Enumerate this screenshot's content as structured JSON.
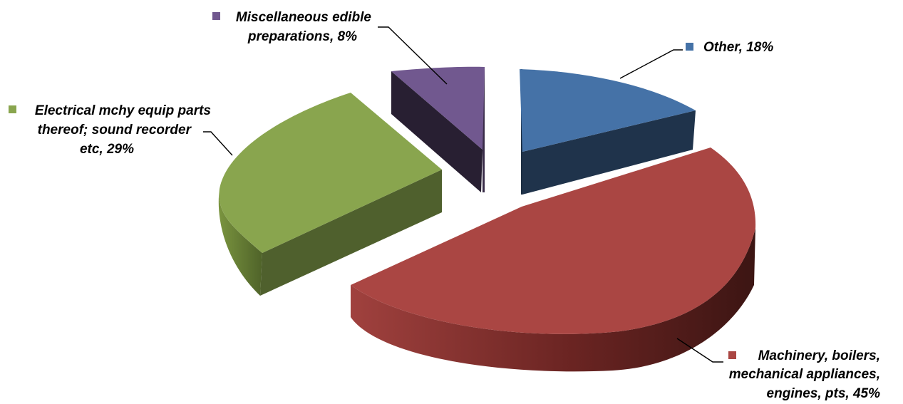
{
  "chart_data": {
    "type": "pie",
    "style": "3d-exploded",
    "title": "",
    "slices": [
      {
        "name": "Other",
        "value": 18,
        "label_lines": [
          "Other, 18%"
        ],
        "color": "#4572A7"
      },
      {
        "name": "Machinery, boilers, mechanical appliances, engines, pts",
        "value": 45,
        "label_lines": [
          "Machinery, boilers,",
          "mechanical appliances,",
          "engines, pts, 45%"
        ],
        "color": "#AA4643"
      },
      {
        "name": "Electrical mchy equip parts thereof; sound recorder etc",
        "value": 29,
        "label_lines": [
          "Electrical mchy equip parts",
          "thereof; sound recorder",
          "etc, 29%"
        ],
        "color": "#89A54E"
      },
      {
        "name": "Miscellaneous edible preparations",
        "value": 8,
        "label_lines": [
          "Miscellaneous edible",
          "preparations, 8%"
        ],
        "color": "#71588F"
      }
    ]
  }
}
